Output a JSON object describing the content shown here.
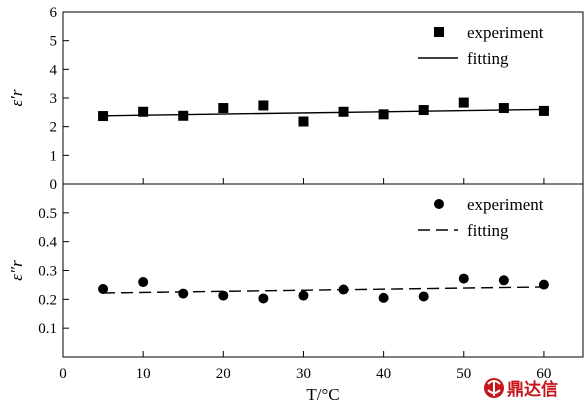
{
  "chart_data": [
    {
      "type": "scatter",
      "ylabel": "ε′r",
      "xlim": [
        0,
        65
      ],
      "ylim": [
        0,
        6
      ],
      "yticks": [
        0,
        1,
        2,
        3,
        4,
        5,
        6
      ],
      "grid": false,
      "legend": "top-right",
      "series": [
        {
          "name": "experiment",
          "marker": "square",
          "x": [
            5,
            10,
            15,
            20,
            25,
            30,
            35,
            40,
            45,
            50,
            55,
            60
          ],
          "y": [
            2.37,
            2.52,
            2.38,
            2.65,
            2.74,
            2.18,
            2.52,
            2.43,
            2.58,
            2.84,
            2.65,
            2.55
          ]
        },
        {
          "name": "fitting",
          "style": "solid",
          "x": [
            5,
            60
          ],
          "y": [
            2.38,
            2.6
          ]
        }
      ]
    },
    {
      "type": "scatter",
      "ylabel": "ε″r",
      "xlabel": "T/°C",
      "xlim": [
        0,
        65
      ],
      "ylim": [
        0,
        0.6
      ],
      "yticks": [
        0.1,
        0.2,
        0.3,
        0.4,
        0.5
      ],
      "xticks": [
        0,
        10,
        20,
        30,
        40,
        50,
        60
      ],
      "grid": false,
      "legend": "top-right",
      "series": [
        {
          "name": "experiment",
          "marker": "circle",
          "x": [
            5,
            10,
            15,
            20,
            25,
            30,
            35,
            40,
            45,
            50,
            55,
            60
          ],
          "y": [
            0.236,
            0.26,
            0.22,
            0.213,
            0.203,
            0.213,
            0.234,
            0.205,
            0.21,
            0.272,
            0.266,
            0.251
          ]
        },
        {
          "name": "fitting",
          "style": "dashed",
          "x": [
            5,
            60
          ],
          "y": [
            0.222,
            0.243
          ]
        }
      ]
    }
  ],
  "watermark": {
    "text": "鼎达信",
    "icon": "logo-icon",
    "color": "#c4161c"
  }
}
